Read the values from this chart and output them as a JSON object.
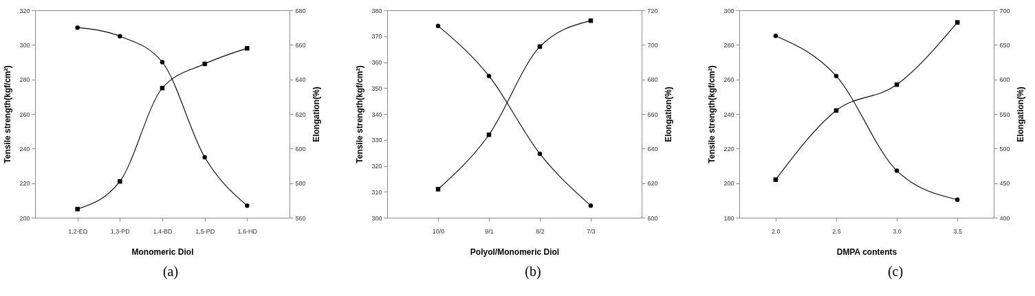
{
  "chart_data": [
    {
      "type": "line",
      "title": "(a)",
      "xlabel": "Monomeric Diol",
      "ylabel": "Tensile strength(kgf/cm²)",
      "y2label": "Elongation(%)",
      "line_style": "solid",
      "categories": [
        "1,2-ED",
        "1,3-PD",
        "1,4-BD",
        "1,5-PD",
        "1,6-HD"
      ],
      "series": [
        {
          "color": "#000000",
          "marker": "square",
          "values": [
            205,
            221,
            275,
            289,
            298
          ]
        },
        {
          "color": "#000000",
          "marker": "circle",
          "axis": "y2",
          "values": [
            670,
            665,
            650,
            595,
            567
          ]
        }
      ],
      "ylim": [
        200,
        320
      ],
      "yticks": [
        200,
        220,
        240,
        260,
        280,
        300,
        320
      ],
      "y2lim": [
        560,
        680
      ],
      "y2ticks": [
        560,
        580,
        600,
        620,
        640,
        660,
        680
      ]
    },
    {
      "type": "line",
      "title": "(b)",
      "xlabel": "Polyol/Monomeric Diol",
      "ylabel": "Tensile strength(kgf/cm²)",
      "y2label": "Elongation(%)",
      "line_style": "solid",
      "categories": [
        "10/0",
        "9/1",
        "8/2",
        "7/3"
      ],
      "series": [
        {
          "color": "#000000",
          "marker": "square",
          "values": [
            311,
            332,
            366,
            376
          ]
        },
        {
          "color": "#000000",
          "marker": "circle",
          "axis": "y2",
          "values": [
            711,
            682,
            637,
            607
          ]
        }
      ],
      "ylim": [
        300,
        380
      ],
      "yticks": [
        300,
        310,
        320,
        330,
        340,
        350,
        360,
        370,
        380
      ],
      "y2lim": [
        600,
        720
      ],
      "y2ticks": [
        600,
        620,
        640,
        660,
        680,
        700,
        720
      ]
    },
    {
      "type": "line",
      "title": "(c)",
      "xlabel": "DMPA contents",
      "ylabel": "Tensile strength(kgf/cm²)",
      "y2label": "Elongation(%)",
      "line_style": "solid",
      "x": [
        2.0,
        2.5,
        3.0,
        3.5
      ],
      "xlim": [
        1.7,
        3.8
      ],
      "xticks": [
        {
          "value": 2,
          "label": "2.0"
        },
        {
          "value": 2.5,
          "label": "2.5"
        },
        {
          "value": 3,
          "label": "3.0"
        },
        {
          "value": 3.5,
          "label": "3.5"
        }
      ],
      "series": [
        {
          "color": "#000000",
          "marker": "square",
          "values": [
            202,
            242,
            257,
            293
          ]
        },
        {
          "color": "#000000",
          "marker": "circle",
          "axis": "y2",
          "values": [
            663,
            605,
            468,
            426
          ]
        }
      ],
      "ylim": [
        180,
        300
      ],
      "yticks": [
        180,
        200,
        220,
        240,
        260,
        280,
        300
      ],
      "y2lim": [
        400,
        700
      ],
      "y2ticks": [
        400,
        450,
        500,
        550,
        600,
        650,
        700
      ]
    }
  ]
}
